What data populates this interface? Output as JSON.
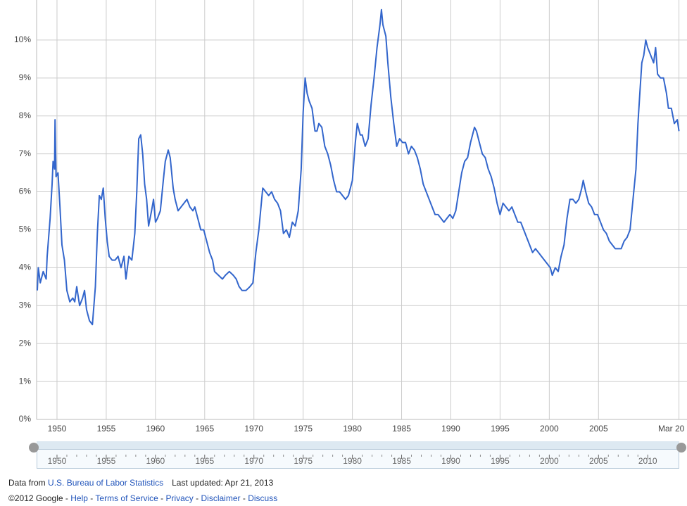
{
  "chart_data": {
    "type": "line",
    "color": "#3366cc",
    "grid": true,
    "x": [
      1948.0,
      1948.1,
      1948.3,
      1948.6,
      1948.9,
      1949.0,
      1949.3,
      1949.5,
      1949.6,
      1949.75,
      1949.8,
      1949.9,
      1950.1,
      1950.3,
      1950.5,
      1950.75,
      1951.0,
      1951.3,
      1951.6,
      1951.8,
      1952.0,
      1952.3,
      1952.6,
      1952.8,
      1953.0,
      1953.3,
      1953.6,
      1953.9,
      1954.1,
      1954.3,
      1954.5,
      1954.7,
      1954.9,
      1955.1,
      1955.3,
      1955.6,
      1955.9,
      1956.2,
      1956.5,
      1956.8,
      1957.0,
      1957.3,
      1957.6,
      1957.9,
      1958.1,
      1958.3,
      1958.5,
      1958.7,
      1958.9,
      1959.1,
      1959.3,
      1959.6,
      1959.8,
      1960.0,
      1960.2,
      1960.5,
      1960.8,
      1961.0,
      1961.3,
      1961.5,
      1961.8,
      1962.0,
      1962.3,
      1962.6,
      1962.9,
      1963.2,
      1963.5,
      1963.8,
      1964.0,
      1964.3,
      1964.6,
      1964.9,
      1965.2,
      1965.5,
      1965.8,
      1966.0,
      1966.4,
      1966.8,
      1967.1,
      1967.5,
      1967.9,
      1968.2,
      1968.5,
      1968.8,
      1969.2,
      1969.6,
      1969.9,
      1970.2,
      1970.5,
      1970.9,
      1971.2,
      1971.5,
      1971.8,
      1972.1,
      1972.4,
      1972.7,
      1973.0,
      1973.3,
      1973.6,
      1973.9,
      1974.2,
      1974.5,
      1974.8,
      1975.0,
      1975.2,
      1975.4,
      1975.6,
      1975.9,
      1976.2,
      1976.4,
      1976.6,
      1976.9,
      1977.2,
      1977.5,
      1977.8,
      1978.1,
      1978.4,
      1978.7,
      1979.0,
      1979.3,
      1979.6,
      1980.0,
      1980.3,
      1980.5,
      1980.8,
      1981.0,
      1981.3,
      1981.6,
      1981.9,
      1982.2,
      1982.5,
      1982.8,
      1982.95,
      1983.1,
      1983.4,
      1983.6,
      1983.9,
      1984.2,
      1984.5,
      1984.8,
      1985.1,
      1985.4,
      1985.7,
      1986.0,
      1986.3,
      1986.6,
      1986.9,
      1987.2,
      1987.5,
      1987.8,
      1988.1,
      1988.4,
      1988.7,
      1989.0,
      1989.3,
      1989.6,
      1989.9,
      1990.2,
      1990.5,
      1990.8,
      1991.1,
      1991.4,
      1991.7,
      1992.0,
      1992.4,
      1992.6,
      1992.9,
      1993.2,
      1993.5,
      1993.8,
      1994.1,
      1994.4,
      1994.7,
      1995.0,
      1995.3,
      1995.6,
      1995.9,
      1996.2,
      1996.5,
      1996.8,
      1997.1,
      1997.4,
      1997.7,
      1998.0,
      1998.3,
      1998.6,
      1998.9,
      1999.2,
      1999.5,
      1999.8,
      2000.1,
      2000.3,
      2000.6,
      2000.9,
      2001.2,
      2001.5,
      2001.8,
      2002.1,
      2002.4,
      2002.7,
      2003.0,
      2003.3,
      2003.45,
      2003.7,
      2004.0,
      2004.3,
      2004.6,
      2004.9,
      2005.2,
      2005.5,
      2005.8,
      2006.1,
      2006.4,
      2006.7,
      2007.0,
      2007.3,
      2007.6,
      2007.9,
      2008.2,
      2008.5,
      2008.8,
      2009.0,
      2009.2,
      2009.4,
      2009.6,
      2009.8,
      2010.0,
      2010.3,
      2010.6,
      2010.8,
      2011.0,
      2011.3,
      2011.6,
      2011.9,
      2012.1,
      2012.4,
      2012.7,
      2013.0,
      2013.17
    ],
    "values": [
      3.4,
      4.0,
      3.6,
      3.9,
      3.7,
      4.3,
      5.3,
      6.2,
      6.8,
      6.6,
      7.9,
      6.4,
      6.5,
      5.6,
      4.6,
      4.2,
      3.4,
      3.1,
      3.2,
      3.1,
      3.5,
      3.0,
      3.2,
      3.4,
      2.9,
      2.6,
      2.5,
      3.5,
      4.9,
      5.9,
      5.8,
      6.1,
      5.3,
      4.7,
      4.3,
      4.2,
      4.2,
      4.3,
      4.0,
      4.3,
      3.7,
      4.3,
      4.2,
      4.9,
      6.0,
      7.4,
      7.5,
      7.0,
      6.2,
      5.8,
      5.1,
      5.5,
      5.8,
      5.2,
      5.3,
      5.5,
      6.3,
      6.8,
      7.1,
      6.9,
      6.1,
      5.8,
      5.5,
      5.6,
      5.7,
      5.8,
      5.6,
      5.5,
      5.6,
      5.3,
      5.0,
      5.0,
      4.7,
      4.4,
      4.2,
      3.9,
      3.8,
      3.7,
      3.8,
      3.9,
      3.8,
      3.7,
      3.5,
      3.4,
      3.4,
      3.5,
      3.6,
      4.4,
      5.0,
      6.1,
      6.0,
      5.9,
      6.0,
      5.8,
      5.7,
      5.5,
      4.9,
      5.0,
      4.8,
      5.2,
      5.1,
      5.5,
      6.6,
      8.1,
      9.0,
      8.6,
      8.4,
      8.2,
      7.6,
      7.6,
      7.8,
      7.7,
      7.2,
      7.0,
      6.7,
      6.3,
      6.0,
      6.0,
      5.9,
      5.8,
      5.9,
      6.3,
      7.3,
      7.8,
      7.5,
      7.5,
      7.2,
      7.4,
      8.3,
      9.0,
      9.8,
      10.4,
      10.8,
      10.4,
      10.1,
      9.4,
      8.5,
      7.8,
      7.2,
      7.4,
      7.3,
      7.3,
      7.0,
      7.2,
      7.1,
      6.9,
      6.6,
      6.2,
      6.0,
      5.8,
      5.6,
      5.4,
      5.4,
      5.3,
      5.2,
      5.3,
      5.4,
      5.3,
      5.5,
      6.0,
      6.5,
      6.8,
      6.9,
      7.3,
      7.7,
      7.6,
      7.3,
      7.0,
      6.9,
      6.6,
      6.4,
      6.1,
      5.7,
      5.4,
      5.7,
      5.6,
      5.5,
      5.6,
      5.4,
      5.2,
      5.2,
      5.0,
      4.8,
      4.6,
      4.4,
      4.5,
      4.4,
      4.3,
      4.2,
      4.1,
      4.0,
      3.8,
      4.0,
      3.9,
      4.3,
      4.6,
      5.3,
      5.8,
      5.8,
      5.7,
      5.8,
      6.1,
      6.3,
      6.0,
      5.7,
      5.6,
      5.4,
      5.4,
      5.2,
      5.0,
      4.9,
      4.7,
      4.6,
      4.5,
      4.5,
      4.5,
      4.7,
      4.8,
      5.0,
      5.8,
      6.6,
      7.8,
      8.6,
      9.4,
      9.6,
      10.0,
      9.8,
      9.6,
      9.4,
      9.8,
      9.1,
      9.0,
      9.0,
      8.6,
      8.2,
      8.2,
      7.8,
      7.9,
      7.6
    ],
    "xlim": [
      1948,
      2013.2
    ],
    "ylim": [
      0,
      11
    ],
    "yticks": [
      {
        "value": 0,
        "label": "0%"
      },
      {
        "value": 1,
        "label": "1%"
      },
      {
        "value": 2,
        "label": "2%"
      },
      {
        "value": 3,
        "label": "3%"
      },
      {
        "value": 4,
        "label": "4%"
      },
      {
        "value": 5,
        "label": "5%"
      },
      {
        "value": 6,
        "label": "6%"
      },
      {
        "value": 7,
        "label": "7%"
      },
      {
        "value": 8,
        "label": "8%"
      },
      {
        "value": 9,
        "label": "9%"
      },
      {
        "value": 10,
        "label": "10%"
      }
    ],
    "xticks": [
      1950,
      1955,
      1960,
      1965,
      1970,
      1975,
      1980,
      1985,
      1990,
      1995,
      2000,
      2005,
      {
        "value": 2013.17,
        "label": "Mar 20"
      }
    ],
    "overview_xticks": [
      1950,
      1955,
      1960,
      1965,
      1970,
      1975,
      1980,
      1985,
      1990,
      1995,
      2000,
      2005,
      2010
    ]
  },
  "footer": {
    "source_prefix": "Data from",
    "source_link": "U.S. Bureau of Labor Statistics",
    "updated": "Last updated: Apr 21, 2013",
    "copyright": "©2012 Google",
    "separator": "-",
    "links": [
      "Help",
      "Terms of Service",
      "Privacy",
      "Disclaimer",
      "Discuss"
    ]
  }
}
